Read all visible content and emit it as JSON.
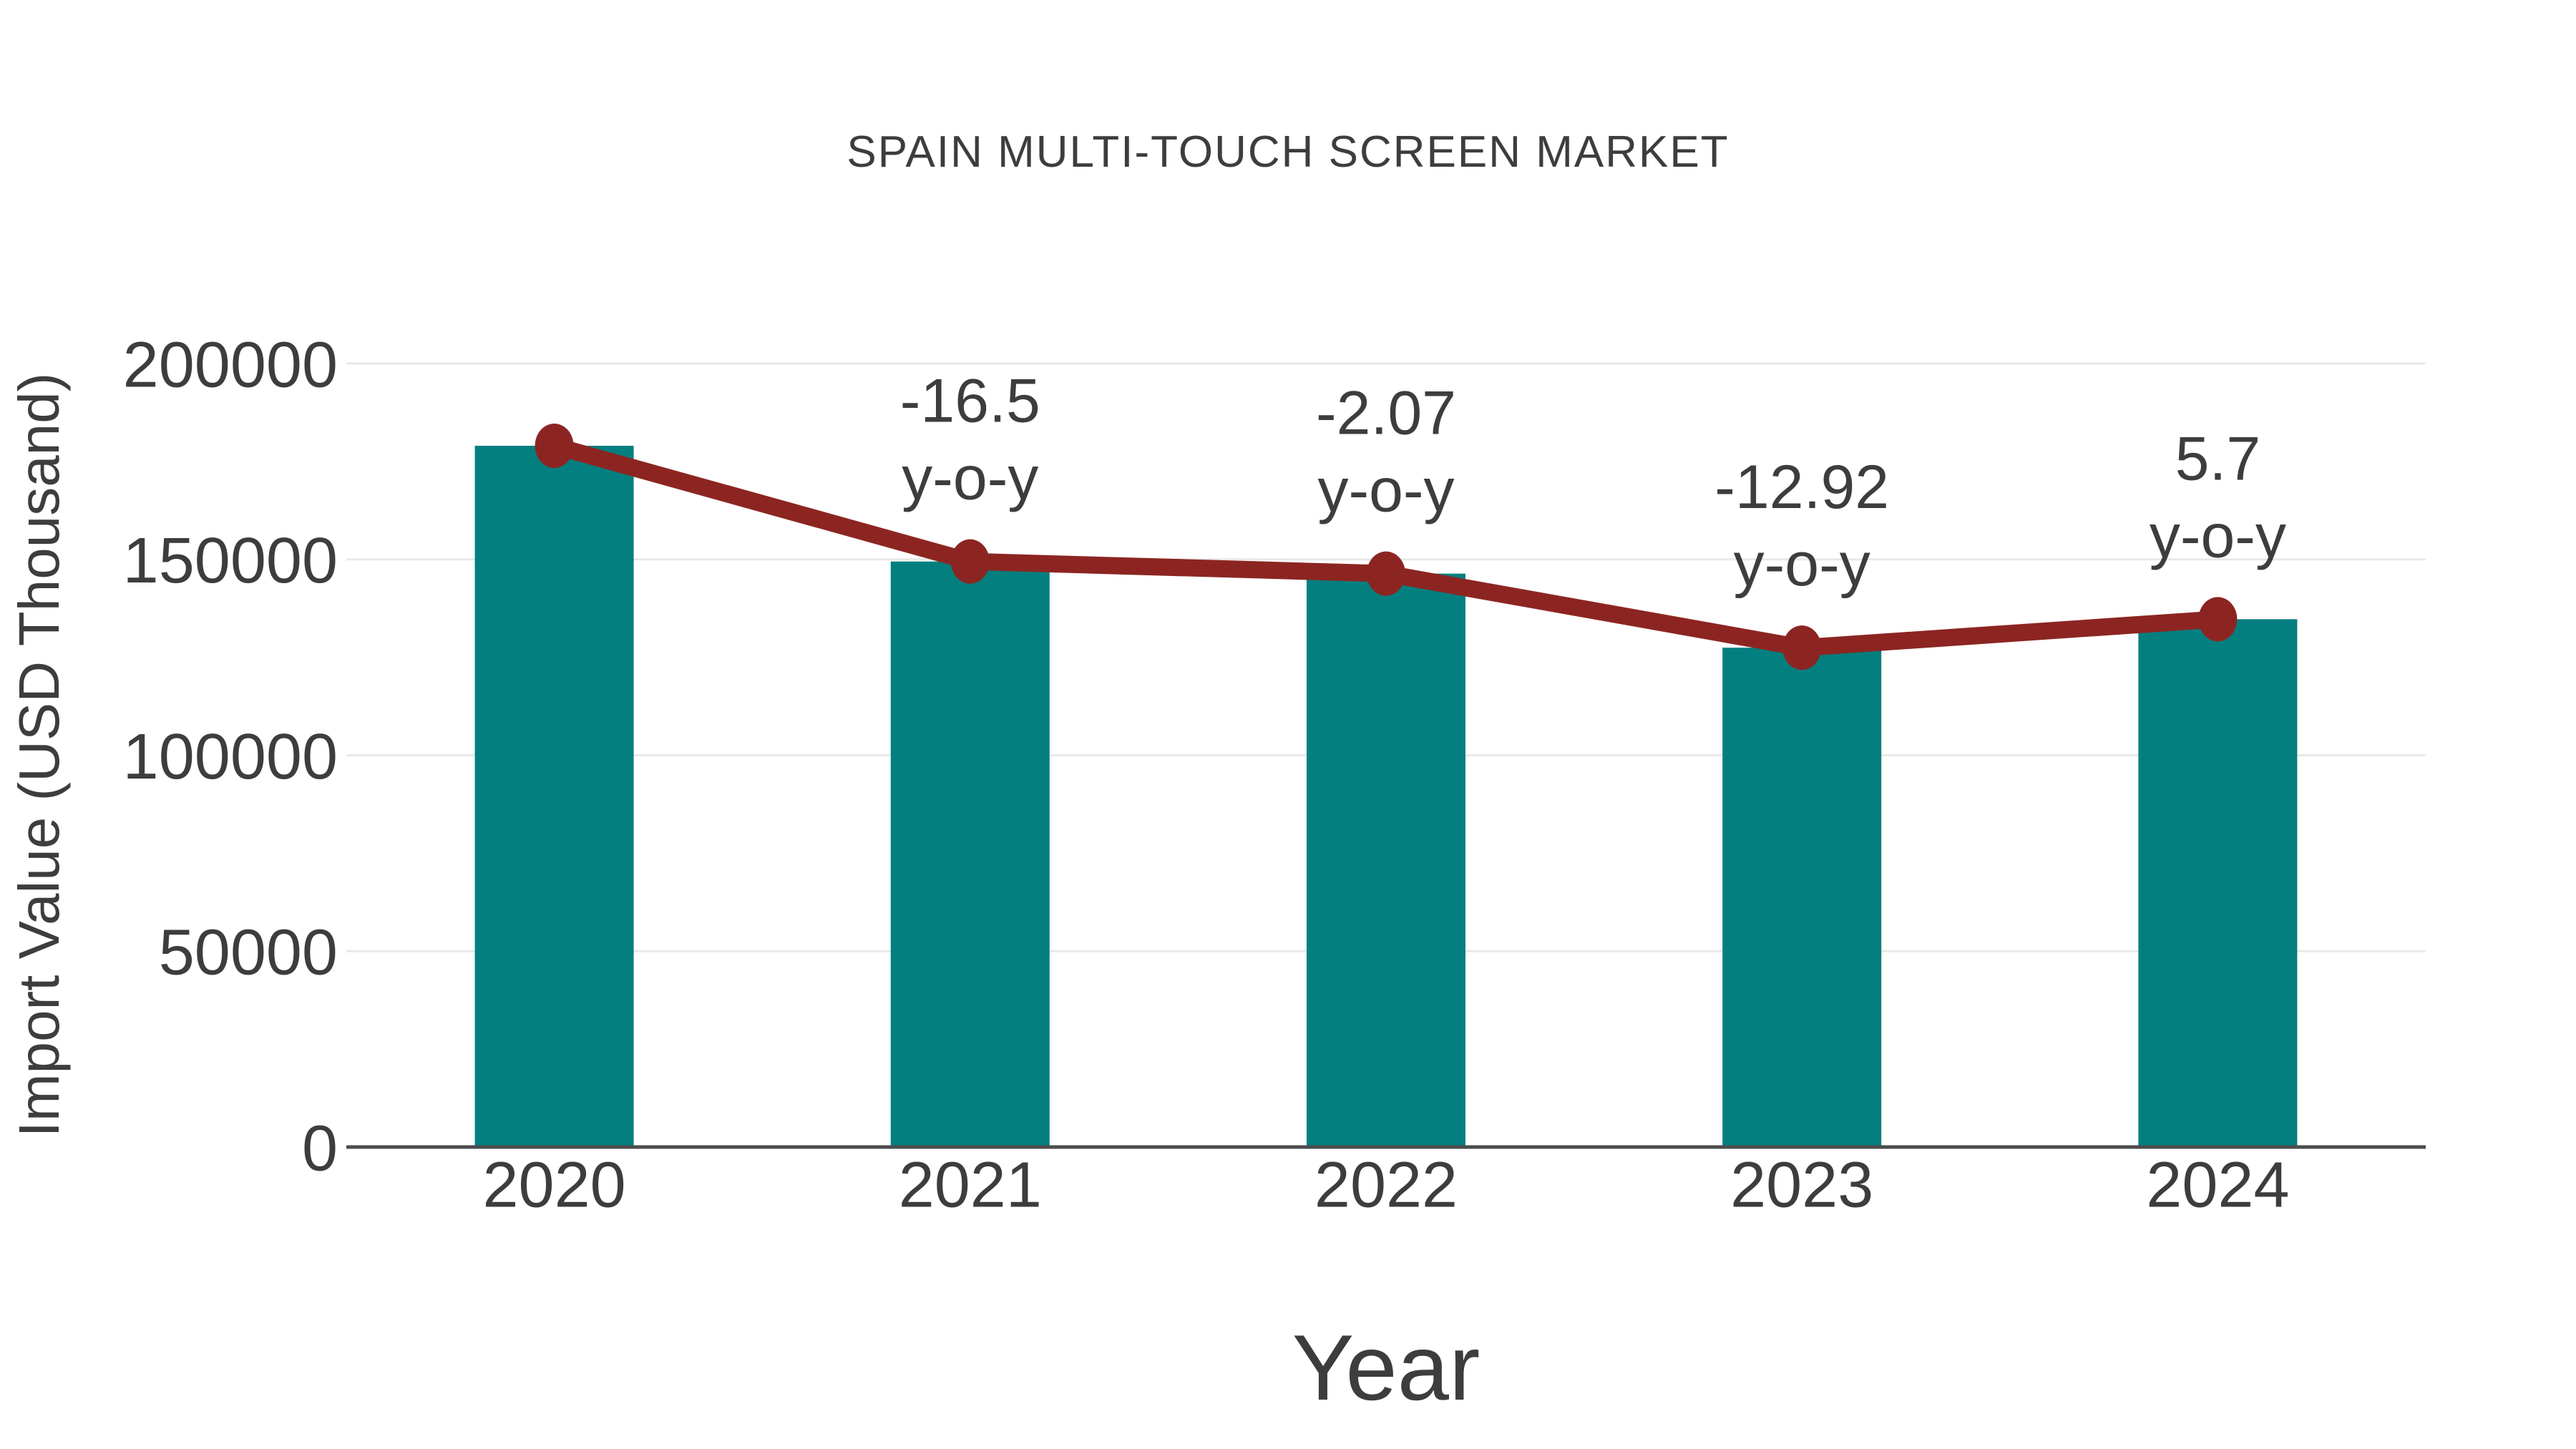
{
  "chart_data": {
    "type": "bar",
    "title": "SPAIN MULTI-TOUCH SCREEN MARKET",
    "xlabel": "Year",
    "ylabel": "Import Value (USD Thousand)",
    "categories": [
      "2020",
      "2021",
      "2022",
      "2023",
      "2024"
    ],
    "series": [
      {
        "name": "Import Value bars",
        "type": "bar",
        "color": "#047f7f",
        "values": [
          179000,
          149465,
          146371,
          127460,
          134725
        ]
      },
      {
        "name": "Import Value trend line",
        "type": "line",
        "color": "#8c2522",
        "marker_color": "#8c2522",
        "values": [
          179000,
          149465,
          146371,
          127460,
          134725
        ]
      }
    ],
    "annotations": [
      {
        "category": "2021",
        "value_label": "-16.5",
        "suffix_label": "y-o-y"
      },
      {
        "category": "2022",
        "value_label": "-2.07",
        "suffix_label": "y-o-y"
      },
      {
        "category": "2023",
        "value_label": "-12.92",
        "suffix_label": "y-o-y"
      },
      {
        "category": "2024",
        "value_label": "5.7",
        "suffix_label": "y-o-y"
      }
    ],
    "ylim": [
      0,
      200000
    ],
    "yticks": [
      0,
      50000,
      100000,
      150000,
      200000
    ],
    "ytick_labels": [
      "0",
      "50000",
      "100000",
      "150000",
      "200000"
    ],
    "grid": "horizontal",
    "legend_position": "none"
  },
  "colors": {
    "bar": "#047f7f",
    "line": "#8c2522",
    "text": "#3d3d3d",
    "tick_text": "#3d3d3d",
    "grid": "#e8e8e8",
    "axis": "#4c4c4c",
    "background": "#ffffff"
  }
}
